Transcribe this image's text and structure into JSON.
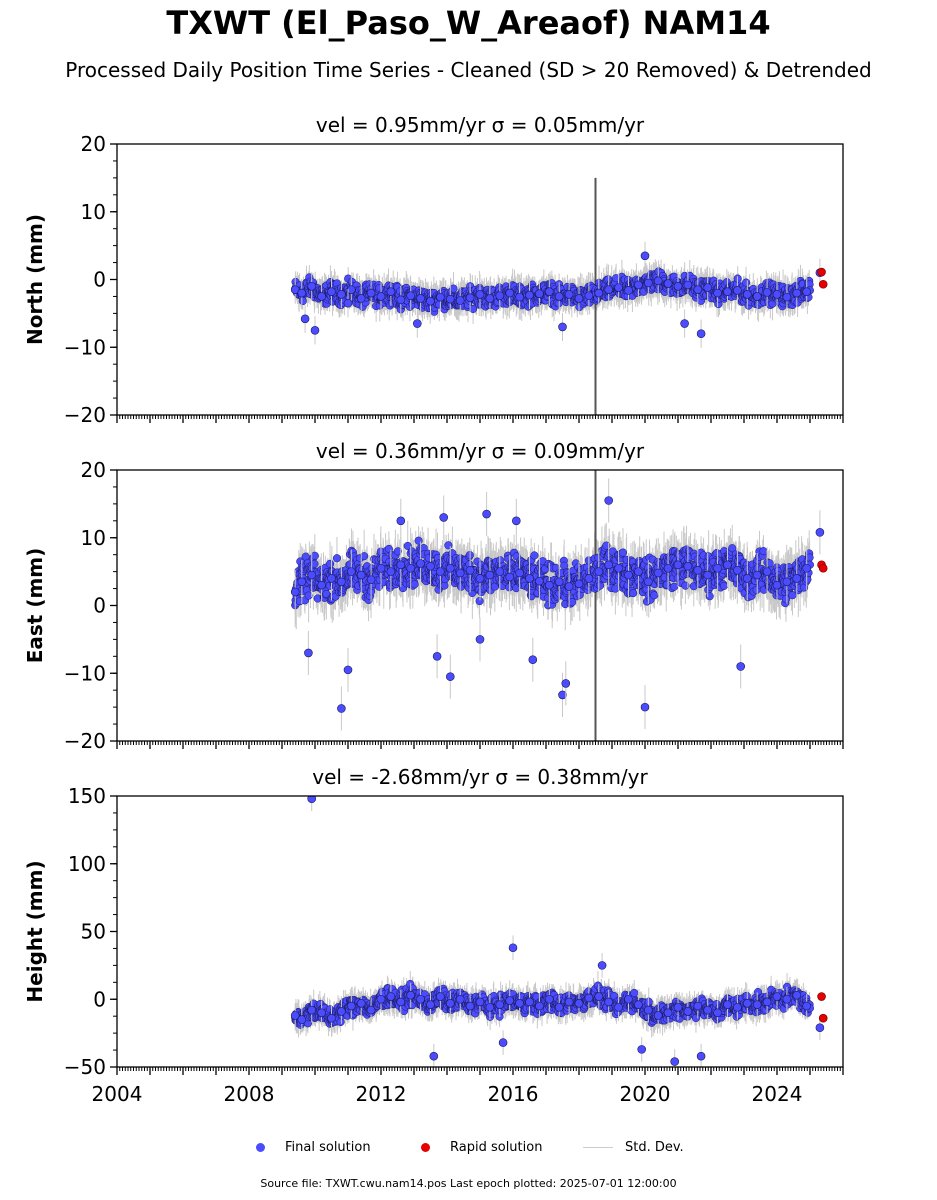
{
  "title": "TXWT (El_Paso_W_Areaof) NAM14",
  "subtitle": "Processed Daily Position Time Series - Cleaned (SD > 20 Removed) & Detrended",
  "legend": {
    "final": "Final solution",
    "rapid": "Rapid solution",
    "std": "Std. Dev."
  },
  "footer": "Source file: TXWT.cwu.nam14.pos  Last epoch plotted: 2025-07-01 12:00:00",
  "colors": {
    "final": "#4b4bff",
    "rapid": "#e60000",
    "std": "#c8c8c8",
    "edge": "#1a1a5a"
  },
  "chart_data": [
    {
      "type": "scatter",
      "component": "north",
      "title": "vel = 0.95mm/yr   σ = 0.05mm/yr",
      "ylabel": "North (mm)",
      "xlim": [
        2004,
        2026
      ],
      "ylim": [
        -20,
        20
      ],
      "yticks": [
        -20,
        -10,
        0,
        10,
        20
      ],
      "ytick_labels": [
        "−20",
        "−10",
        "0",
        "10",
        "20"
      ],
      "series": [
        {
          "name": "Final solution",
          "kind": "final",
          "x": [
            2009.4,
            2009.6,
            2009.9,
            2010.2,
            2010.5,
            2010.8,
            2011.1,
            2011.4,
            2011.7,
            2012.0,
            2012.3,
            2012.6,
            2012.9,
            2013.2,
            2013.5,
            2013.8,
            2014.1,
            2014.4,
            2014.7,
            2015.0,
            2015.3,
            2015.6,
            2015.9,
            2016.2,
            2016.5,
            2016.8,
            2017.1,
            2017.4,
            2017.7,
            2018.0,
            2018.3,
            2018.6,
            2018.9,
            2019.2,
            2019.5,
            2019.8,
            2020.1,
            2020.4,
            2020.7,
            2021.0,
            2021.3,
            2021.6,
            2021.9,
            2022.2,
            2022.5,
            2022.8,
            2023.1,
            2023.4,
            2023.7,
            2024.0,
            2024.3,
            2024.6,
            2024.9,
            2025.3,
            2009.7,
            2010.0,
            2011.0,
            2013.1,
            2017.5,
            2021.2,
            2021.7,
            2020.0
          ],
          "y": [
            -1.5,
            -2.0,
            -1.0,
            -2.5,
            -1.8,
            -2.2,
            -1.5,
            -2.8,
            -2.0,
            -2.5,
            -1.8,
            -3.0,
            -2.4,
            -2.8,
            -3.2,
            -2.6,
            -2.9,
            -3.1,
            -2.7,
            -2.2,
            -2.8,
            -2.4,
            -2.0,
            -2.6,
            -2.3,
            -2.1,
            -1.8,
            -2.5,
            -2.2,
            -2.8,
            -2.4,
            -2.0,
            -1.5,
            -1.2,
            -1.6,
            -0.8,
            -0.5,
            -0.2,
            -0.6,
            -1.0,
            -0.8,
            -1.5,
            -1.2,
            -2.0,
            -1.8,
            -1.6,
            -2.2,
            -2.5,
            -1.9,
            -2.2,
            -2.6,
            -2.0,
            -1.8,
            1.0,
            -5.8,
            -7.5,
            -3.5,
            -6.5,
            -7.0,
            -6.5,
            -8.0,
            3.5
          ]
        },
        {
          "name": "Rapid solution",
          "kind": "rapid",
          "x": [
            2025.35,
            2025.4
          ],
          "y": [
            1.1,
            -0.7
          ]
        }
      ]
    },
    {
      "type": "scatter",
      "component": "east",
      "title": "vel = 0.36mm/yr   σ = 0.09mm/yr",
      "ylabel": "East (mm)",
      "xlim": [
        2004,
        2026
      ],
      "ylim": [
        -20,
        20
      ],
      "yticks": [
        -20,
        -10,
        0,
        10,
        20
      ],
      "ytick_labels": [
        "−20",
        "−10",
        "0",
        "10",
        "20"
      ],
      "series": [
        {
          "name": "Final solution",
          "kind": "final",
          "x": [
            2009.4,
            2009.6,
            2009.9,
            2010.2,
            2010.5,
            2010.8,
            2011.1,
            2011.4,
            2011.7,
            2012.0,
            2012.3,
            2012.6,
            2012.9,
            2013.2,
            2013.5,
            2013.8,
            2014.1,
            2014.4,
            2014.7,
            2015.0,
            2015.3,
            2015.6,
            2015.9,
            2016.2,
            2016.5,
            2016.8,
            2017.1,
            2017.4,
            2017.7,
            2018.0,
            2018.3,
            2018.6,
            2018.9,
            2019.2,
            2019.5,
            2019.8,
            2020.1,
            2020.4,
            2020.7,
            2021.0,
            2021.3,
            2021.6,
            2021.9,
            2022.2,
            2022.5,
            2022.8,
            2023.1,
            2023.4,
            2023.7,
            2024.0,
            2024.3,
            2024.6,
            2024.9,
            2025.3,
            2010.8,
            2012.6,
            2013.9,
            2014.1,
            2015.2,
            2016.1,
            2016.6,
            2017.5,
            2017.6,
            2018.9,
            2020.0,
            2022.9,
            2009.8,
            2011.0,
            2013.7,
            2015.0
          ],
          "y": [
            2.0,
            3.5,
            4.5,
            3.0,
            4.0,
            3.5,
            5.0,
            4.5,
            3.8,
            5.5,
            5.0,
            6.0,
            5.5,
            6.2,
            5.8,
            5.0,
            5.5,
            4.8,
            5.2,
            4.0,
            4.5,
            5.0,
            4.2,
            4.8,
            4.0,
            3.6,
            3.0,
            3.5,
            2.8,
            3.2,
            4.0,
            5.0,
            6.0,
            5.5,
            4.5,
            5.0,
            3.5,
            4.8,
            5.5,
            6.0,
            5.8,
            5.2,
            4.5,
            5.5,
            6.0,
            5.2,
            4.0,
            4.5,
            5.0,
            3.0,
            3.5,
            4.0,
            5.5,
            10.8,
            -15.2,
            12.5,
            13.0,
            -10.5,
            13.5,
            12.5,
            -8.0,
            -13.2,
            -11.5,
            15.5,
            -15.0,
            -9.0,
            -7.0,
            -9.5,
            -7.5,
            -5.0
          ]
        },
        {
          "name": "Rapid solution",
          "kind": "rapid",
          "x": [
            2025.35,
            2025.4
          ],
          "y": [
            6.0,
            5.5
          ]
        }
      ]
    },
    {
      "type": "scatter",
      "component": "height",
      "title": "vel = -2.68mm/yr   σ = 0.38mm/yr",
      "ylabel": "Height (mm)",
      "xlim": [
        2004,
        2026
      ],
      "ylim": [
        -50,
        150
      ],
      "yticks": [
        -50,
        0,
        50,
        100,
        150
      ],
      "ytick_labels": [
        "−50",
        "0",
        "50",
        "100",
        "150"
      ],
      "xticks": [
        2004,
        2008,
        2012,
        2016,
        2020,
        2024
      ],
      "series": [
        {
          "name": "Final solution",
          "kind": "final",
          "x": [
            2009.4,
            2009.6,
            2009.9,
            2010.2,
            2010.5,
            2010.8,
            2011.1,
            2011.4,
            2011.7,
            2012.0,
            2012.3,
            2012.6,
            2012.9,
            2013.2,
            2013.5,
            2013.8,
            2014.1,
            2014.4,
            2014.7,
            2015.0,
            2015.3,
            2015.6,
            2015.9,
            2016.2,
            2016.5,
            2016.8,
            2017.1,
            2017.4,
            2017.7,
            2018.0,
            2018.3,
            2018.6,
            2018.9,
            2019.2,
            2019.5,
            2019.8,
            2020.1,
            2020.4,
            2020.7,
            2021.0,
            2021.3,
            2021.6,
            2021.9,
            2022.2,
            2022.5,
            2022.8,
            2023.1,
            2023.4,
            2023.7,
            2024.0,
            2024.3,
            2024.6,
            2024.9,
            2025.3,
            2009.9,
            2016.0,
            2015.7,
            2018.7,
            2020.9,
            2021.7,
            2013.6,
            2019.9
          ],
          "y": [
            -12,
            -15,
            -8,
            -10,
            -14,
            -9,
            -5,
            -3,
            -8,
            0,
            2,
            -2,
            3,
            0,
            -4,
            2,
            -3,
            0,
            -5,
            -2,
            -6,
            -4,
            -1,
            -3,
            -2,
            -5,
            0,
            -6,
            -2,
            -3,
            1,
            2,
            -2,
            -6,
            0,
            -4,
            -8,
            -12,
            -10,
            -6,
            -9,
            -5,
            -8,
            -10,
            -4,
            -6,
            -3,
            -4,
            -2,
            2,
            0,
            3,
            -5,
            -21,
            148,
            38,
            -32,
            25,
            -46,
            -42,
            -42,
            -37
          ]
        },
        {
          "name": "Rapid solution",
          "kind": "rapid",
          "x": [
            2025.35,
            2025.4
          ],
          "y": [
            2,
            -14
          ]
        }
      ]
    }
  ]
}
